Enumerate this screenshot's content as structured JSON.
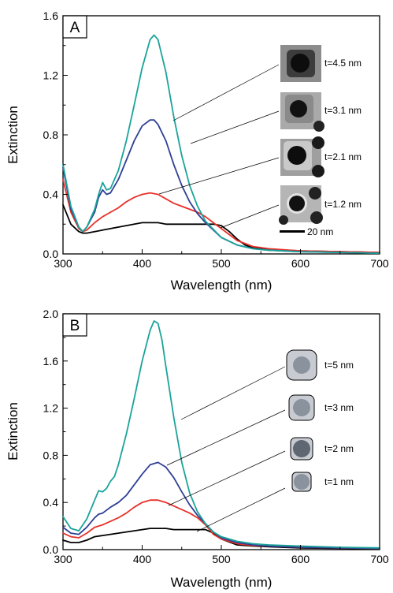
{
  "chart_data": [
    {
      "type": "line",
      "panel_label": "A",
      "xlabel": "Wavelength (nm)",
      "ylabel": "Extinction",
      "xlim": [
        300,
        700
      ],
      "ylim": [
        0,
        1.6
      ],
      "xticks": [
        "300",
        "400",
        "500",
        "600",
        "700"
      ],
      "yticks": [
        "0.0",
        "0.4",
        "0.8",
        "1.2",
        "1.6"
      ],
      "grid": false,
      "inset_type": "tem-images",
      "scale_bar_label": "20 nm",
      "series": [
        {
          "label": "t=4.5 nm",
          "color": "#1aa39a",
          "x": [
            300,
            310,
            320,
            325,
            330,
            340,
            345,
            350,
            355,
            360,
            370,
            380,
            390,
            400,
            410,
            415,
            420,
            430,
            440,
            450,
            460,
            470,
            480,
            500,
            520,
            540,
            560,
            600,
            650,
            700
          ],
          "y": [
            0.6,
            0.32,
            0.18,
            0.15,
            0.18,
            0.3,
            0.4,
            0.48,
            0.43,
            0.44,
            0.56,
            0.76,
            1.0,
            1.25,
            1.44,
            1.47,
            1.44,
            1.22,
            0.92,
            0.66,
            0.46,
            0.32,
            0.22,
            0.11,
            0.06,
            0.035,
            0.025,
            0.015,
            0.01,
            0.005
          ]
        },
        {
          "label": "t=3.1 nm",
          "color": "#2e3f96",
          "x": [
            300,
            310,
            320,
            325,
            330,
            340,
            345,
            350,
            355,
            360,
            370,
            380,
            390,
            400,
            410,
            415,
            420,
            430,
            440,
            450,
            460,
            470,
            480,
            500,
            520,
            540,
            560,
            600,
            650,
            700
          ],
          "y": [
            0.58,
            0.3,
            0.18,
            0.15,
            0.18,
            0.28,
            0.38,
            0.43,
            0.4,
            0.41,
            0.5,
            0.63,
            0.76,
            0.86,
            0.9,
            0.9,
            0.87,
            0.76,
            0.6,
            0.46,
            0.35,
            0.27,
            0.21,
            0.11,
            0.06,
            0.035,
            0.025,
            0.015,
            0.01,
            0.005
          ]
        },
        {
          "label": "t=2.1 nm",
          "color": "#e8312a",
          "x": [
            300,
            310,
            320,
            325,
            330,
            340,
            350,
            360,
            370,
            380,
            390,
            400,
            410,
            420,
            430,
            440,
            450,
            460,
            470,
            480,
            490,
            500,
            520,
            540,
            560,
            600,
            650,
            700
          ],
          "y": [
            0.5,
            0.28,
            0.17,
            0.15,
            0.16,
            0.21,
            0.25,
            0.28,
            0.31,
            0.35,
            0.38,
            0.4,
            0.41,
            0.4,
            0.37,
            0.34,
            0.32,
            0.3,
            0.28,
            0.25,
            0.21,
            0.17,
            0.09,
            0.05,
            0.035,
            0.02,
            0.015,
            0.01
          ]
        },
        {
          "label": "t=1.2 nm",
          "color": "#000000",
          "x": [
            300,
            310,
            320,
            325,
            330,
            340,
            350,
            360,
            370,
            380,
            390,
            400,
            410,
            420,
            430,
            440,
            450,
            460,
            470,
            480,
            490,
            500,
            510,
            520,
            530,
            540,
            560,
            600,
            650,
            700
          ],
          "y": [
            0.33,
            0.2,
            0.15,
            0.14,
            0.14,
            0.15,
            0.16,
            0.17,
            0.18,
            0.19,
            0.2,
            0.21,
            0.21,
            0.21,
            0.2,
            0.2,
            0.2,
            0.2,
            0.2,
            0.2,
            0.2,
            0.19,
            0.15,
            0.1,
            0.06,
            0.04,
            0.03,
            0.02,
            0.015,
            0.01
          ]
        }
      ],
      "annotations": [
        "t=4.5 nm",
        "t=3.1 nm",
        "t=2.1 nm",
        "t=1.2 nm"
      ]
    },
    {
      "type": "line",
      "panel_label": "B",
      "xlabel": "Wavelength (nm)",
      "ylabel": "Extinction",
      "xlim": [
        300,
        700
      ],
      "ylim": [
        0,
        2.0
      ],
      "xticks": [
        "300",
        "400",
        "500",
        "600",
        "700"
      ],
      "yticks": [
        "0.0",
        "0.4",
        "0.8",
        "1.2",
        "1.6",
        "2.0"
      ],
      "grid": false,
      "inset_type": "core-shell-schematics",
      "series": [
        {
          "label": "t=5 nm",
          "color": "#1aa39a",
          "x": [
            300,
            310,
            320,
            330,
            340,
            345,
            350,
            355,
            360,
            365,
            370,
            380,
            390,
            400,
            410,
            415,
            420,
            425,
            430,
            440,
            450,
            460,
            470,
            480,
            490,
            500,
            520,
            540,
            560,
            600,
            650,
            700
          ],
          "y": [
            0.28,
            0.18,
            0.16,
            0.26,
            0.42,
            0.5,
            0.49,
            0.52,
            0.58,
            0.62,
            0.72,
            0.98,
            1.28,
            1.6,
            1.86,
            1.94,
            1.92,
            1.78,
            1.55,
            1.12,
            0.74,
            0.48,
            0.32,
            0.22,
            0.15,
            0.11,
            0.07,
            0.05,
            0.04,
            0.03,
            0.02,
            0.015
          ]
        },
        {
          "label": "t=3 nm",
          "color": "#2e3f96",
          "x": [
            300,
            310,
            320,
            330,
            340,
            345,
            350,
            360,
            370,
            380,
            390,
            400,
            410,
            420,
            430,
            440,
            450,
            460,
            470,
            480,
            490,
            500,
            520,
            540,
            560,
            600,
            650,
            700
          ],
          "y": [
            0.19,
            0.14,
            0.13,
            0.19,
            0.27,
            0.3,
            0.31,
            0.36,
            0.4,
            0.46,
            0.55,
            0.64,
            0.72,
            0.74,
            0.7,
            0.61,
            0.49,
            0.38,
            0.29,
            0.22,
            0.15,
            0.1,
            0.06,
            0.04,
            0.03,
            0.02,
            0.015,
            0.01
          ]
        },
        {
          "label": "t=2 nm",
          "color": "#e8312a",
          "x": [
            300,
            310,
            320,
            330,
            340,
            350,
            360,
            370,
            380,
            390,
            400,
            410,
            420,
            430,
            440,
            450,
            460,
            470,
            480,
            490,
            500,
            520,
            540,
            560,
            600,
            650,
            700
          ],
          "y": [
            0.14,
            0.11,
            0.1,
            0.14,
            0.19,
            0.21,
            0.24,
            0.27,
            0.31,
            0.36,
            0.4,
            0.42,
            0.42,
            0.4,
            0.37,
            0.34,
            0.31,
            0.27,
            0.21,
            0.13,
            0.09,
            0.05,
            0.035,
            0.03,
            0.02,
            0.015,
            0.01
          ]
        },
        {
          "label": "t=1 nm",
          "color": "#000000",
          "x": [
            300,
            310,
            320,
            330,
            340,
            350,
            360,
            370,
            380,
            390,
            400,
            410,
            420,
            430,
            440,
            450,
            460,
            470,
            480,
            490,
            500,
            520,
            540,
            560,
            600,
            650,
            700
          ],
          "y": [
            0.08,
            0.06,
            0.06,
            0.08,
            0.11,
            0.12,
            0.13,
            0.14,
            0.15,
            0.16,
            0.17,
            0.18,
            0.18,
            0.18,
            0.17,
            0.17,
            0.17,
            0.17,
            0.17,
            0.14,
            0.09,
            0.04,
            0.03,
            0.025,
            0.015,
            0.01,
            0.008
          ]
        }
      ],
      "annotations": [
        "t=5 nm",
        "t=3 nm",
        "t=2 nm",
        "t=1 nm"
      ]
    }
  ]
}
